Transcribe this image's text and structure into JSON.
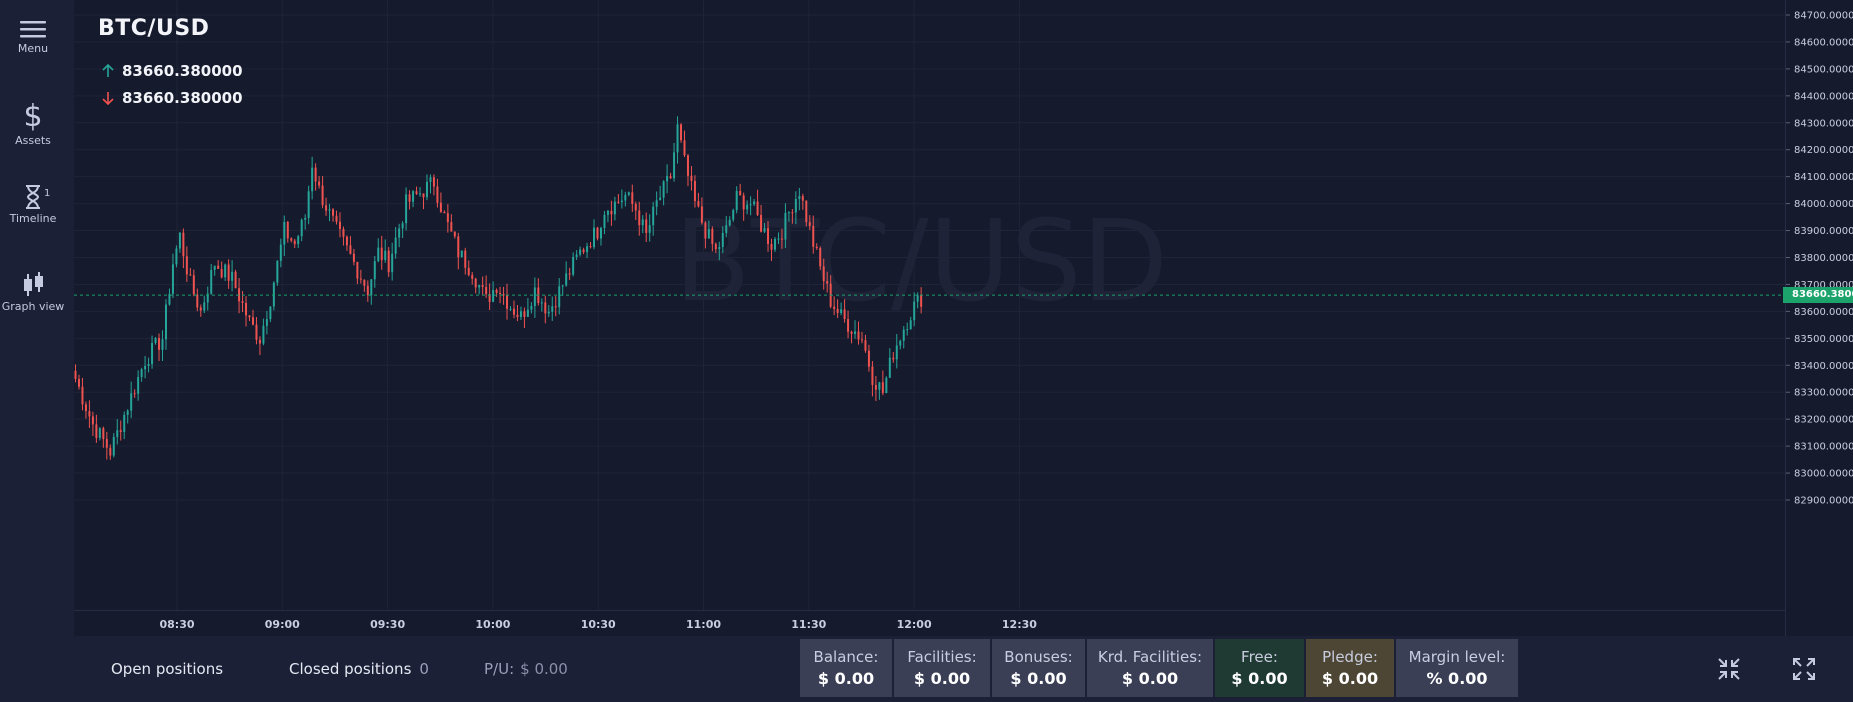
{
  "sidebar": {
    "items": [
      {
        "label": "Menu",
        "icon": "hamburger-icon"
      },
      {
        "label": "Assets",
        "icon": "dollar-icon"
      },
      {
        "label": "Timeline",
        "icon": "hourglass-icon",
        "badge": "1"
      },
      {
        "label": "Graph view",
        "icon": "candlestick-icon"
      }
    ]
  },
  "instrument": {
    "symbol": "BTC/USD",
    "watermark": "BTC/USD",
    "ask": "83660.380000",
    "bid": "83660.380000"
  },
  "colors": {
    "up": "#26a69a",
    "down": "#ef5350",
    "price_tag": "#1ba36b",
    "accent": "#2a3050"
  },
  "current_price_label": "83660.3800",
  "bottom": {
    "open_positions": "Open positions",
    "closed_positions": "Closed positions",
    "closed_count": "0",
    "pl_label": "P/U:",
    "pl_value": "$ 0.00",
    "cards": [
      {
        "title": "Balance:",
        "value": "$ 0.00"
      },
      {
        "title": "Facilities:",
        "value": "$ 0.00"
      },
      {
        "title": "Bonuses:",
        "value": "$ 0.00"
      },
      {
        "title": "Krd. Facilities:",
        "value": "$ 0.00"
      },
      {
        "title": "Free:",
        "value": "$ 0.00"
      },
      {
        "title": "Pledge:",
        "value": "$ 0.00"
      },
      {
        "title": "Margin level:",
        "value": "% 0.00"
      }
    ]
  },
  "chart_data": {
    "type": "candlestick",
    "y_axis_ticks": [
      "84700.0000",
      "84600.0000",
      "84500.0000",
      "84400.0000",
      "84300.0000",
      "84200.0000",
      "84100.0000",
      "84000.0000",
      "83900.0000",
      "83800.0000",
      "83700.0000",
      "83600.0000",
      "83500.0000",
      "83400.0000",
      "83300.0000",
      "83200.0000",
      "83100.0000",
      "83000.0000",
      "82900.0000"
    ],
    "x_axis_ticks": [
      "08:30",
      "09:00",
      "09:30",
      "10:00",
      "10:30",
      "11:00",
      "11:30",
      "12:00",
      "12:30"
    ],
    "ylim": [
      82850,
      84740
    ],
    "current_price": 83660.38,
    "close_path": [
      [
        0,
        83350
      ],
      [
        5,
        83180
      ],
      [
        10,
        83080
      ],
      [
        15,
        83250
      ],
      [
        20,
        83420
      ],
      [
        25,
        83500
      ],
      [
        28,
        83780
      ],
      [
        30,
        83880
      ],
      [
        33,
        83700
      ],
      [
        36,
        83600
      ],
      [
        40,
        83780
      ],
      [
        45,
        83720
      ],
      [
        50,
        83560
      ],
      [
        53,
        83500
      ],
      [
        56,
        83650
      ],
      [
        60,
        83900
      ],
      [
        63,
        83850
      ],
      [
        66,
        83950
      ],
      [
        68,
        84150
      ],
      [
        70,
        84050
      ],
      [
        75,
        83900
      ],
      [
        80,
        83780
      ],
      [
        84,
        83680
      ],
      [
        87,
        83820
      ],
      [
        90,
        83780
      ],
      [
        95,
        84000
      ],
      [
        100,
        84050
      ],
      [
        103,
        84080
      ],
      [
        106,
        83950
      ],
      [
        110,
        83820
      ],
      [
        114,
        83750
      ],
      [
        118,
        83640
      ],
      [
        121,
        83700
      ],
      [
        125,
        83620
      ],
      [
        128,
        83580
      ],
      [
        132,
        83680
      ],
      [
        136,
        83600
      ],
      [
        140,
        83700
      ],
      [
        145,
        83820
      ],
      [
        150,
        83900
      ],
      [
        152,
        83980
      ],
      [
        155,
        84000
      ],
      [
        158,
        84030
      ],
      [
        161,
        83980
      ],
      [
        164,
        83880
      ],
      [
        167,
        84000
      ],
      [
        171,
        84100
      ],
      [
        173,
        84280
      ],
      [
        175,
        84150
      ],
      [
        178,
        84000
      ],
      [
        181,
        83900
      ],
      [
        184,
        83820
      ],
      [
        187,
        83900
      ],
      [
        190,
        84020
      ],
      [
        194,
        84000
      ],
      [
        197,
        83920
      ],
      [
        200,
        83850
      ],
      [
        203,
        83900
      ],
      [
        206,
        84000
      ],
      [
        208,
        84050
      ],
      [
        211,
        83900
      ],
      [
        214,
        83760
      ],
      [
        217,
        83640
      ],
      [
        220,
        83580
      ],
      [
        223,
        83540
      ],
      [
        226,
        83500
      ],
      [
        229,
        83360
      ],
      [
        232,
        83300
      ],
      [
        235,
        83450
      ],
      [
        238,
        83540
      ],
      [
        241,
        83620
      ],
      [
        243,
        83650
      ]
    ]
  }
}
